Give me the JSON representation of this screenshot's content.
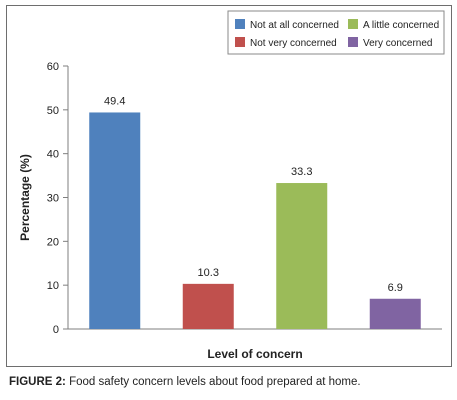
{
  "chart_data": {
    "type": "bar",
    "categories": [
      "Not at all concerned",
      "Not very concerned",
      "A little concerned",
      "Very concerned"
    ],
    "values": [
      49.4,
      10.3,
      33.3,
      6.9
    ],
    "colors": [
      "#4f81bd",
      "#c0504d",
      "#9bbb59",
      "#8064a2"
    ],
    "xlabel": "Level of concern",
    "ylabel": "Percentage (%)",
    "ylim": [
      0,
      60
    ],
    "yticks": [
      0,
      10,
      20,
      30,
      40,
      50,
      60
    ],
    "grid": false,
    "legend": {
      "placement": "top-right",
      "entries": [
        "Not at all concerned",
        "A little concerned",
        "Not very concerned",
        "Very concerned"
      ],
      "colors": [
        "#4f81bd",
        "#9bbb59",
        "#c0504d",
        "#8064a2"
      ]
    }
  },
  "caption": {
    "label": "FIGURE 2:",
    "text": " Food safety concern levels about food prepared at home."
  }
}
